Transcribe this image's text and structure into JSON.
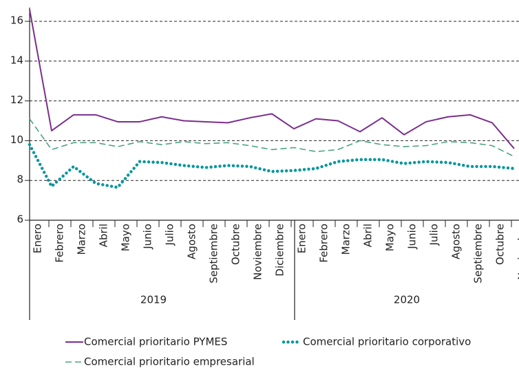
{
  "chart_data": {
    "type": "line",
    "categories": [
      "Enero",
      "Febrero",
      "Marzo",
      "Abril",
      "Mayo",
      "Junio",
      "Julio",
      "Agosto",
      "Septiembre",
      "Octubre",
      "Noviembre",
      "Diciembre",
      "Enero",
      "Febrero",
      "Marzo",
      "Abril",
      "Mayo",
      "Junio",
      "Julio",
      "Agosto",
      "Septiembre",
      "Octubre",
      "Noviembre"
    ],
    "category_groups": [
      {
        "label": "2019",
        "size": 12
      },
      {
        "label": "2020",
        "size": 11
      }
    ],
    "series": [
      {
        "name": "Comercial prioritario PYMES",
        "color": "#7b2d8e",
        "style": "solid",
        "values": [
          16.6,
          10.5,
          11.3,
          11.3,
          10.95,
          10.95,
          11.2,
          11.0,
          10.95,
          10.9,
          11.15,
          11.35,
          10.6,
          11.1,
          11.0,
          10.45,
          11.15,
          10.3,
          10.95,
          11.2,
          11.3,
          10.9,
          9.6
        ]
      },
      {
        "name": "Comercial prioritario corporativo",
        "color": "#00979d",
        "style": "dotted",
        "values": [
          9.8,
          7.7,
          8.7,
          7.85,
          7.65,
          8.95,
          8.9,
          8.75,
          8.65,
          8.75,
          8.7,
          8.45,
          8.5,
          8.6,
          8.95,
          9.05,
          9.05,
          8.85,
          8.95,
          8.9,
          8.7,
          8.7,
          8.6
        ]
      },
      {
        "name": "Comercial prioritario empresarial",
        "color": "#4aa37f",
        "style": "dashed",
        "values": [
          11.1,
          9.55,
          9.9,
          9.9,
          9.7,
          9.95,
          9.8,
          9.95,
          9.85,
          9.9,
          9.75,
          9.55,
          9.65,
          9.45,
          9.55,
          10.0,
          9.8,
          9.7,
          9.75,
          9.95,
          9.9,
          9.75,
          9.2
        ]
      }
    ],
    "ylim": [
      6,
      16.6
    ],
    "yticks": [
      6,
      8,
      10,
      12,
      14,
      16
    ],
    "grid": true
  }
}
